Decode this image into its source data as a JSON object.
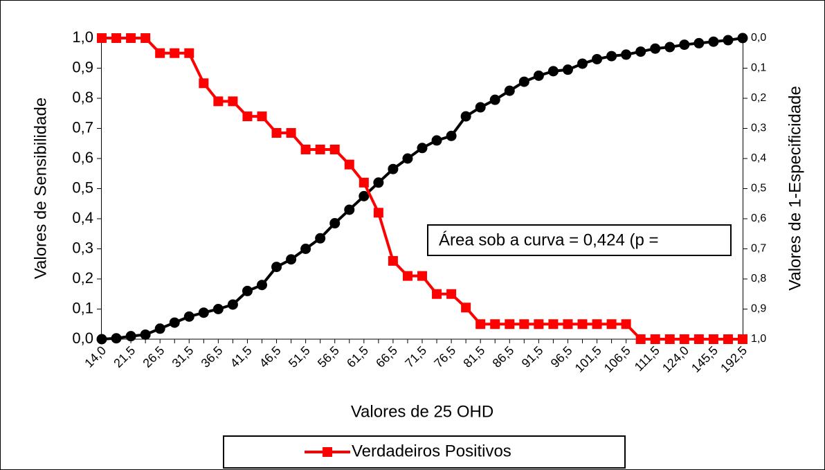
{
  "chart_data": {
    "type": "line",
    "categories": [
      "14,0",
      null,
      "21,5",
      null,
      "26,5",
      null,
      "31,5",
      null,
      "36,5",
      null,
      "41,5",
      null,
      "46,5",
      null,
      "51,5",
      null,
      "56,5",
      null,
      "61,5",
      null,
      "66,5",
      null,
      "71,5",
      null,
      "76,5",
      null,
      "81,5",
      null,
      "86,5",
      null,
      "91,5",
      null,
      "96,5",
      null,
      "101,5",
      null,
      "106,5",
      null,
      "111,5",
      null,
      "124,0",
      null,
      "145,5",
      null,
      "192,5"
    ],
    "series": [
      {
        "name": "Verdadeiros Positivos",
        "color": "#ff0000",
        "marker": "square",
        "values": [
          1,
          1,
          1,
          1,
          0.95,
          0.95,
          0.95,
          0.85,
          0.79,
          0.79,
          0.74,
          0.74,
          0.685,
          0.685,
          0.63,
          0.63,
          0.63,
          0.58,
          0.52,
          0.42,
          0.26,
          0.21,
          0.21,
          0.15,
          0.15,
          0.105,
          0.05,
          0.05,
          0.05,
          0.05,
          0.05,
          0.05,
          0.05,
          0.05,
          0.05,
          0.05,
          0.05,
          0,
          0,
          0,
          0,
          0,
          0,
          0,
          0
        ]
      },
      {
        "color": "#000000",
        "marker": "circle",
        "axis": "y2",
        "values": [
          1,
          0.997,
          0.99,
          0.985,
          0.965,
          0.945,
          0.925,
          0.912,
          0.9,
          0.885,
          0.84,
          0.82,
          0.76,
          0.735,
          0.7,
          0.665,
          0.615,
          0.57,
          0.525,
          0.48,
          0.435,
          0.4,
          0.365,
          0.34,
          0.325,
          0.26,
          0.23,
          0.205,
          0.175,
          0.145,
          0.125,
          0.11,
          0.105,
          0.085,
          0.07,
          0.06,
          0.055,
          0.045,
          0.035,
          0.03,
          0.022,
          0.017,
          0.012,
          0.007,
          0
        ]
      }
    ],
    "ylim": [
      0,
      1
    ],
    "yticks": [
      {
        "value": 0,
        "label": "0,0"
      },
      {
        "value": 0.1,
        "label": "0,1"
      },
      {
        "value": 0.2,
        "label": "0,2"
      },
      {
        "value": 0.3,
        "label": "0,3"
      },
      {
        "value": 0.4,
        "label": "0,4"
      },
      {
        "value": 0.5,
        "label": "0,5"
      },
      {
        "value": 0.6,
        "label": "0,6"
      },
      {
        "value": 0.7,
        "label": "0,7"
      },
      {
        "value": 0.8,
        "label": "0,8"
      },
      {
        "value": 0.9,
        "label": "0,9"
      },
      {
        "value": 1,
        "label": "1,0"
      }
    ],
    "y2lim": [
      1,
      0
    ],
    "y2ticks": [
      {
        "value": 0,
        "label": "0,0"
      },
      {
        "value": 0.1,
        "label": "0,1"
      },
      {
        "value": 0.2,
        "label": "0,2"
      },
      {
        "value": 0.3,
        "label": "0,3"
      },
      {
        "value": 0.4,
        "label": "0,4"
      },
      {
        "value": 0.5,
        "label": "0,5"
      },
      {
        "value": 0.6,
        "label": "0,6"
      },
      {
        "value": 0.7,
        "label": "0,7"
      },
      {
        "value": 0.8,
        "label": "0,8"
      },
      {
        "value": 0.9,
        "label": "0,9"
      },
      {
        "value": 1,
        "label": "1,0"
      }
    ],
    "x_label": "Valores de 25 OHD",
    "y_label": "Valores de Sensibilidade",
    "y2_label": "Valores de 1-Especificidade",
    "annotation": "Área sob a curva = 0,424 (p =",
    "legend": "bottom"
  }
}
